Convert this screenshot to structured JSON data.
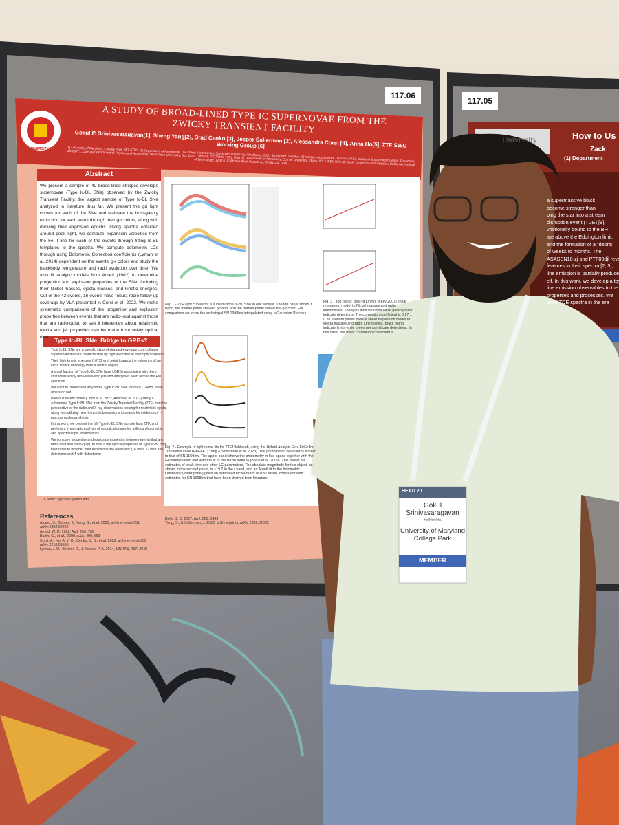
{
  "poster_numbers": [
    "117.06",
    "117.05"
  ],
  "poster": {
    "logo": "UNIVERSITY OF MARYLAND",
    "title": "A STUDY OF BROAD-LINED TYPE IC SUPERNOVAE FROM THE ZWICKY TRANSIENT FACILITY",
    "authors": "Gokul P. Srinivasaragavan[1], Sheng Yang[2], Brad Cenko [3], Jesper Sollerman [2], Alessandra Corsi [4], Anna Ho[5], ZTF SWG Working Group [6]",
    "affiliations": "[1] University of Maryland, College Park, MD 20742 [2] Department of Astronomy, The Oskar Klein Center, Stockholm University, AlbaNova, 10691 Stockholm, Sweden [3] Astrophysics Science Division, NASA Goddard Space Flight Center, Greenbelt, MD 20771, USA [4] Department of Physics and Astronomy, Texas Tech University, Box 1051, Lubbock, TX 79409-1051, USA [5] Department of Astronomy, Cornell University, Ithaca, NY 14853, USA [6] Cahill Center for Astrophysics, California Institute of Technology, 1200 E. California Blvd, Pasadena, CA 91125, USA",
    "abstract_header": "Abstract",
    "abstract": "We present a sample of 42 broad-lined stripped-envelope supernovae (Type Ic-BL SNe) observed by the Zwicky Transient Facility, the largest sample of Type Ic-BL SNe analyzed in literature thus far. We present the gri light curves for each of the SNe and estimate the host-galaxy extinction for each event through their g-r colors, along with deriving their explosion epochs. Using spectra obtained around peak light, we compute expansion velocities from the Fe II line for each of the events through fitting Ic-BL templates to the spectra. We compute bolometric LCs through using Bolometric Correction coefficients (Lyman et al. 2014) dependent on the events' g-r colors and study the blackbody temperature and radii evolution over time. We also fit analytic models from Arnett (1982) to determine progenitor and explosion properties of the SNe, including their Nickel masses, ejecta masses, and kinetic energies. Out of the 42 events, 16 events have robust radio follow-up coverage by VLA presented in Corsi et al. 2022. We make systematic comparisons of the progenitor and explosion properties between events that are radio-loud against those that are radio-quiet, to see if inferences about relativistic ejecta and jet properties can be made from solely optical data.",
    "bridge_header": "Type Ic-BL SNe: Bridge to GRBs?",
    "bullets": [
      "Type Ic-BL SNe are a specific class of stripped-envelope core-collapse supernovae that are characterized by high velocities in their optical spectra",
      "Their high kinetic energies (10^52 erg) point towards the existence of an extra source of energy from a central engine.",
      "A small fraction of Type Ic-BL SNe have LGRBs associated with them, characterized by ultra-relativistic jets and afterglows seen across the EM spectrum.",
      "We want to understand why some Type Ic-BL SNe produce LGRBs, while others do not.",
      "Previous recent works (Corsi et al. 2022, Anand et al. 2022) study a subsample Type Ic-BL SNe from the Zwicky Transient Facility (ZTF) from the perspective of the radio and X-ray observations looking for relativistic ejecta, along with utilizing near-infrared observations to search for evidence of r-process nucleosynthesis",
      "In this work, we present the full Type Ic-BL SNe sample from ZTF, and perform a systematic analysis of its optical properties utilizing photometric and spectroscopic observations.",
      "We compare progenitor and explosion properties between events that are radio-loud and radio-quiet, to infer if the optical properties of Type Ic-BL SNe hold clues to whether their explosions are relativistic (16 total, 12 with non-detections and 4 with detections)"
    ],
    "contact": "Contact: gsriniv2@umd.edu",
    "fig1_caption": "Fig. 1 - ZTF light curves for a subset of the Ic-BL SNe in our sample. The top panel shows r band, the middle panel showed g band, and the bottom panel shows the g-r color. For comparison we show the archetypal SN 1998bw interpolated using a Gaussian Process.",
    "fig2_caption": "Fig. 2 - Example of light curve fits for ZTF19ablesob, using the Hybrid Analytic Flux FittEr for Transients code (HAFFET; Yang & Sollerman et al. 2023). The photometric behavior is similar to that of SN 1998bw. The upper panel shows the photometry in flux-space together with the GP interpolation and with the fit to the Bazin formula (Bazin et al. 2009). This allows for estimates of peak time and other LC parameters. The absolute magnitude for this object, as shown in the second panel, is ~19.2 in the r band, and an Arnett fit to the bolometric luminosity (lower panel) gives an estimated nickel-mass of 0.57 Msun, consistent with estimates for SN 1998bw that have been derived from literature.",
    "fig3_caption": "Fig. 3 - Top panel: Best-fit Linmix (Kelly 2007) linear regression model to Nickel masses and radio luminosities. Triangles indicate limits while green points indicate detections. The correlation coefficient is 0.27 ± 0.28. Bottom panel: Best-fit linear regression model to ejecta masses and radio luminosities. Black points indicate limits while green points indicate detections. In this case, the linear correlation coefficient is",
    "references_header": "References",
    "references": [
      "Anand, S., Barnes, J., Yang, S., et al. 2023, arXiv e-prints,651 arXiv:2302.09226",
      "Arnett, W. D. 1982, ApJ, 253, 785",
      "Bazin, G., et al., 2009, A&A, 499, 653",
      "Corsi, A., Ho, A. Y. Q., Cenko, S. B., et al. 2022, arXiv e-prints,688 arXiv:2210.09536",
      "Lyman, J. D., Bersier, D., & James, P. A. 2014, MNRAS, 437, 3848"
    ],
    "references_right": [
      "Kelly, B. C. 2007, ApJ, 665, 1489",
      "Yang, S., & Sollerman, J. 2023, arXiv e-prints, arXiv:2302.02082"
    ]
  },
  "neighbor_poster": {
    "logo": "University",
    "title": "How to Us",
    "author": "Zack",
    "affiliation": "(1) Department",
    "lines": [
      "a supermassive black",
      "become stronger than",
      "ping the star into a stream",
      "disruption event (TDE) [8],",
      "vitationally bound to the BH",
      "ate above the Eddington limit,",
      "and the formation of a \"debris",
      "of weeks to months. The",
      "ASASSN18-zj and PTF09djl reveal",
      "features in their spectra [2, 5],",
      "line emission is partially produced",
      "elf. In this work, we develop a toy",
      "line emission observables to the",
      "properties and processes. We",
      "ence TDE spectra in the era"
    ]
  },
  "badge": {
    "event": "HEAD 20",
    "name": "Gokul Srinivasaragavan",
    "pronouns": "He/Him/His",
    "affiliation": "University of Maryland College Park",
    "role": "MEMBER"
  }
}
